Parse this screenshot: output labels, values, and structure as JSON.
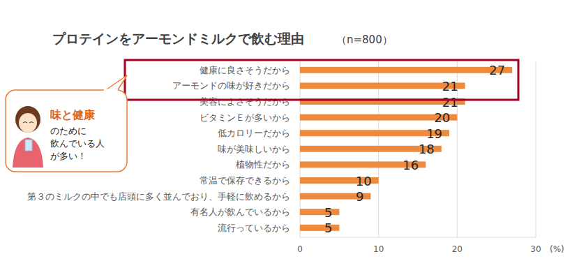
{
  "chart_data": {
    "type": "bar",
    "orientation": "horizontal",
    "title": "プロテインをアーモンドミルクで飲む理由",
    "subtitle": "（n=800）",
    "categories": [
      "健康に良さそうだから",
      "アーモンドの味が好きだから",
      "美容によさそうだから",
      "ビタミンＥが多いから",
      "低カロリーだから",
      "味が美味しいから",
      "植物性だから",
      "常温で保存できるから",
      "第３のミルクの中でも店頭に多く並んでおり、手軽に飲めるから",
      "有名人が飲んでいるから",
      "流行っているから"
    ],
    "values": [
      27,
      21,
      21,
      20,
      19,
      18,
      16,
      10,
      9,
      5,
      5
    ],
    "color": "#ed8a3e",
    "xlim": [
      0,
      30
    ],
    "xticks": [
      0,
      10,
      20,
      30
    ],
    "x_label": "(%)",
    "grid": true,
    "data_labels": true,
    "annotation": {
      "emphasis": "味と健康",
      "lines": [
        "のために",
        "飲んでいる人",
        "が多い！"
      ]
    }
  }
}
